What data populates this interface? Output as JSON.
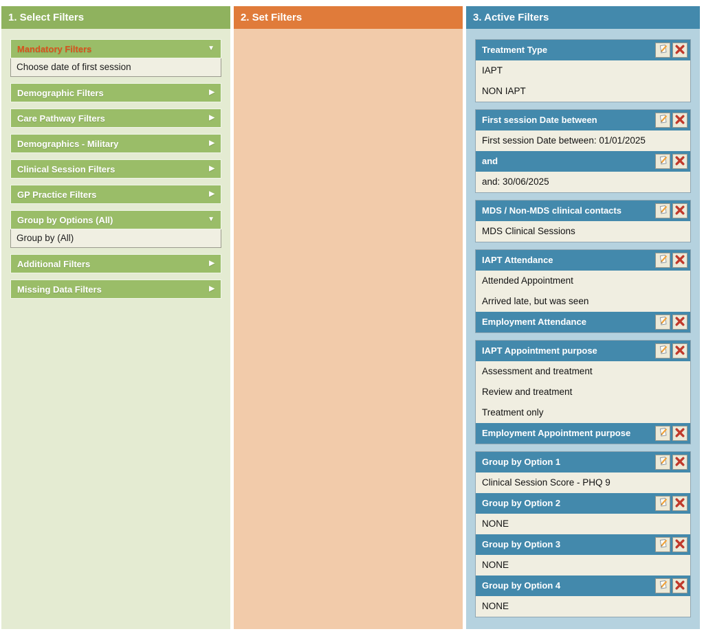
{
  "columns": {
    "select": {
      "title": "1. Select Filters"
    },
    "set": {
      "title": "2. Set Filters"
    },
    "active": {
      "title": "3. Active Filters"
    }
  },
  "icons": {
    "collapsed_arrow": "▶",
    "expanded_arrow": "▼",
    "edit_icon_name": "edit-note-icon",
    "remove_icon_name": "remove-x-icon"
  },
  "colors": {
    "select_header": "#8fb25e",
    "select_body": "#e4ebd2",
    "accordion_header": "#9abd68",
    "mandatory_text": "#d9531e",
    "set_header": "#e07b3a",
    "set_body": "#f2cbaa",
    "active_header": "#4389ac",
    "active_body": "#b5d2df",
    "card_value_bg": "#f0eee1",
    "remove_x": "#c0392b",
    "pencil": "#f2a33c"
  },
  "select_filters": {
    "accordions": [
      {
        "label": "Mandatory Filters",
        "state": "expanded",
        "highlight": true,
        "items": [
          "Choose date of first session"
        ]
      },
      {
        "label": "Demographic Filters",
        "state": "collapsed",
        "highlight": false,
        "items": []
      },
      {
        "label": "Care Pathway Filters",
        "state": "collapsed",
        "highlight": false,
        "items": []
      },
      {
        "label": "Demographics - Military",
        "state": "collapsed",
        "highlight": false,
        "items": []
      },
      {
        "label": "Clinical Session Filters",
        "state": "collapsed",
        "highlight": false,
        "items": []
      },
      {
        "label": "GP Practice Filters",
        "state": "collapsed",
        "highlight": false,
        "items": []
      },
      {
        "label": "Group by Options (All)",
        "state": "expanded",
        "highlight": false,
        "items": [
          "Group by (All)"
        ]
      },
      {
        "label": "Additional Filters",
        "state": "collapsed",
        "highlight": false,
        "items": []
      },
      {
        "label": "Missing Data Filters",
        "state": "collapsed",
        "highlight": false,
        "items": []
      }
    ]
  },
  "active_filters": {
    "groups": [
      {
        "sections": [
          {
            "title": "Treatment Type",
            "values": [
              "IAPT",
              "NON IAPT"
            ]
          }
        ]
      },
      {
        "sections": [
          {
            "title": "First session Date between",
            "values": [
              "First session Date between: 01/01/2025"
            ]
          },
          {
            "title": "and",
            "values": [
              "and: 30/06/2025"
            ]
          }
        ]
      },
      {
        "sections": [
          {
            "title": "MDS / Non-MDS clinical contacts",
            "values": [
              "MDS Clinical Sessions"
            ]
          }
        ]
      },
      {
        "sections": [
          {
            "title": "IAPT Attendance",
            "values": [
              "Attended Appointment",
              "Arrived late, but was seen"
            ]
          },
          {
            "title": "Employment Attendance",
            "values": []
          }
        ]
      },
      {
        "sections": [
          {
            "title": "IAPT Appointment purpose",
            "values": [
              "Assessment and treatment",
              "Review and treatment",
              "Treatment only"
            ]
          },
          {
            "title": "Employment Appointment purpose",
            "values": []
          }
        ]
      },
      {
        "sections": [
          {
            "title": "Group by Option 1",
            "values": [
              "Clinical Session Score - PHQ 9"
            ]
          },
          {
            "title": "Group by Option 2",
            "values": [
              "NONE"
            ]
          },
          {
            "title": "Group by Option 3",
            "values": [
              "NONE"
            ]
          },
          {
            "title": "Group by Option 4",
            "values": [
              "NONE"
            ]
          }
        ]
      }
    ]
  }
}
